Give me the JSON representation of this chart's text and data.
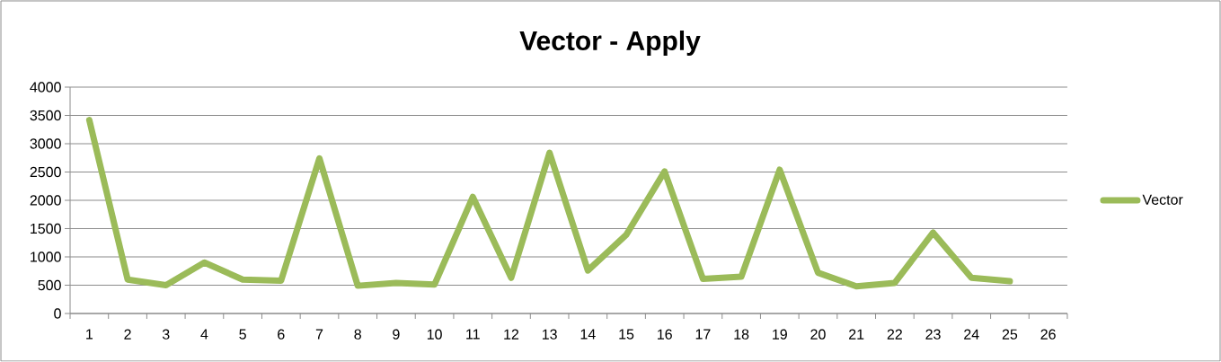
{
  "chart_data": {
    "type": "line",
    "title": "Vector - Apply",
    "categories": [
      "1",
      "2",
      "3",
      "4",
      "5",
      "6",
      "7",
      "8",
      "9",
      "10",
      "11",
      "12",
      "13",
      "14",
      "15",
      "16",
      "17",
      "18",
      "19",
      "20",
      "21",
      "22",
      "23",
      "24",
      "25",
      "26"
    ],
    "series": [
      {
        "name": "Vector",
        "color": "#9bbb59",
        "values": [
          3420,
          600,
          500,
          900,
          600,
          580,
          2740,
          490,
          540,
          510,
          2060,
          630,
          2840,
          760,
          1390,
          2510,
          610,
          650,
          2540,
          720,
          480,
          540,
          1430,
          630,
          570,
          null
        ]
      }
    ],
    "ylim": [
      0,
      4000
    ],
    "yticks": [
      0,
      500,
      1000,
      1500,
      2000,
      2500,
      3000,
      3500,
      4000
    ],
    "grid": "y",
    "legend": "right",
    "marker": "none",
    "line_style": "solid"
  }
}
